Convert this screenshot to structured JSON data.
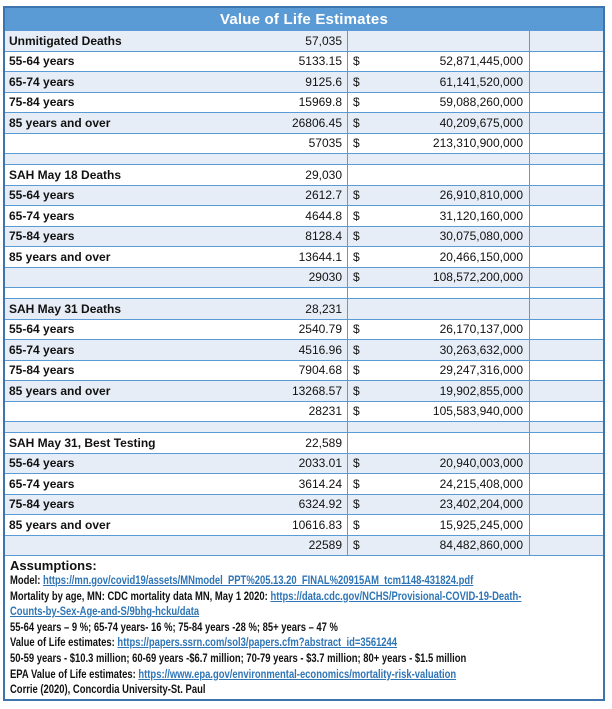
{
  "title": "Value of Life Estimates",
  "colors": {
    "header_bg": "#5B9BD5",
    "header_text": "#FFFFFF",
    "band_bg": "#E7EDF6",
    "grid_border": "#5B9BD5",
    "outer_border": "#3E74AE",
    "link": "#2E75B6"
  },
  "table": {
    "rows": [
      {
        "label": "Unmitigated Deaths",
        "count": "57,035",
        "currency": "",
        "amount": ""
      },
      {
        "label": "55-64 years",
        "count": "5133.15",
        "currency": "$",
        "amount": "52,871,445,000"
      },
      {
        "label": "65-74 years",
        "count": "9125.6",
        "currency": "$",
        "amount": "61,141,520,000"
      },
      {
        "label": "75-84 years",
        "count": "15969.8",
        "currency": "$",
        "amount": "59,088,260,000"
      },
      {
        "label": "85 years and over",
        "count": "26806.45",
        "currency": "$",
        "amount": "40,209,675,000"
      },
      {
        "label": "",
        "count": "57035",
        "currency": "$",
        "amount": "213,310,900,000"
      },
      {
        "spacer": true,
        "label": "",
        "count": "",
        "currency": "",
        "amount": ""
      },
      {
        "label": "SAH May 18 Deaths",
        "count": "29,030",
        "currency": "",
        "amount": ""
      },
      {
        "label": "55-64 years",
        "count": "2612.7",
        "currency": "$",
        "amount": "26,910,810,000"
      },
      {
        "label": "65-74 years",
        "count": "4644.8",
        "currency": "$",
        "amount": "31,120,160,000"
      },
      {
        "label": "75-84 years",
        "count": "8128.4",
        "currency": "$",
        "amount": "30,075,080,000"
      },
      {
        "label": "85 years and over",
        "count": "13644.1",
        "currency": "$",
        "amount": "20,466,150,000"
      },
      {
        "label": "",
        "count": "29030",
        "currency": "$",
        "amount": "108,572,200,000"
      },
      {
        "spacer": true,
        "label": "",
        "count": "",
        "currency": "",
        "amount": ""
      },
      {
        "label": "SAH May 31 Deaths",
        "count": "28,231",
        "currency": "",
        "amount": ""
      },
      {
        "label": "55-64 years",
        "count": "2540.79",
        "currency": "$",
        "amount": "26,170,137,000"
      },
      {
        "label": "65-74 years",
        "count": "4516.96",
        "currency": "$",
        "amount": "30,263,632,000"
      },
      {
        "label": "75-84 years",
        "count": "7904.68",
        "currency": "$",
        "amount": "29,247,316,000"
      },
      {
        "label": "85 years and over",
        "count": "13268.57",
        "currency": "$",
        "amount": "19,902,855,000"
      },
      {
        "label": "",
        "count": "28231",
        "currency": "$",
        "amount": "105,583,940,000"
      },
      {
        "spacer": true,
        "label": "",
        "count": "",
        "currency": "",
        "amount": ""
      },
      {
        "label": "SAH May 31, Best Testing",
        "count": "22,589",
        "currency": "",
        "amount": ""
      },
      {
        "label": "55-64 years",
        "count": "2033.01",
        "currency": "$",
        "amount": "20,940,003,000"
      },
      {
        "label": "65-74 years",
        "count": "3614.24",
        "currency": "$",
        "amount": "24,215,408,000"
      },
      {
        "label": "75-84 years",
        "count": "6324.92",
        "currency": "$",
        "amount": "23,402,204,000"
      },
      {
        "label": "85 years and over",
        "count": "10616.83",
        "currency": "$",
        "amount": "15,925,245,000"
      },
      {
        "label": "",
        "count": "22589",
        "currency": "$",
        "amount": "84,482,860,000"
      }
    ]
  },
  "assumptions": {
    "heading": "Assumptions:",
    "lines": [
      [
        {
          "t": "Model: "
        },
        {
          "t": "https://mn.gov/covid19/assets/MNmodel_PPT%205.13.20_FINAL%20915AM_tcm1148-431824.pdf",
          "link": true
        }
      ],
      [
        {
          "t": "Mortality by age, MN:  CDC mortality data MN, May 1 2020: "
        },
        {
          "t": "https://data.cdc.gov/NCHS/Provisional-COVID-19-Death-",
          "link": true
        }
      ],
      [
        {
          "t": "Counts-by-Sex-Age-and-S/9bhg-hcku/data",
          "link": true
        }
      ],
      [
        {
          "t": "55-64 years – 9 %; 65-74 years- 16 %; 75-84 years -28 %; 85+ years – 47 %"
        }
      ],
      [
        {
          "t": "Value of Life estimates: "
        },
        {
          "t": "https://papers.ssrn.com/sol3/papers.cfm?abstract_id=3561244",
          "link": true
        }
      ],
      [
        {
          "t": "50-59 years - $10.3 million; 60-69 years -$6.7 million; 70-79 years - $3.7 million; 80+ years - $1.5 million"
        }
      ],
      [
        {
          "t": "EPA Value of Life estimates: "
        },
        {
          "t": "https://www.epa.gov/environmental-economics/mortality-risk-valuation",
          "link": true
        }
      ],
      [
        {
          "t": "Corrie (2020), Concordia University-St. Paul"
        }
      ]
    ]
  }
}
